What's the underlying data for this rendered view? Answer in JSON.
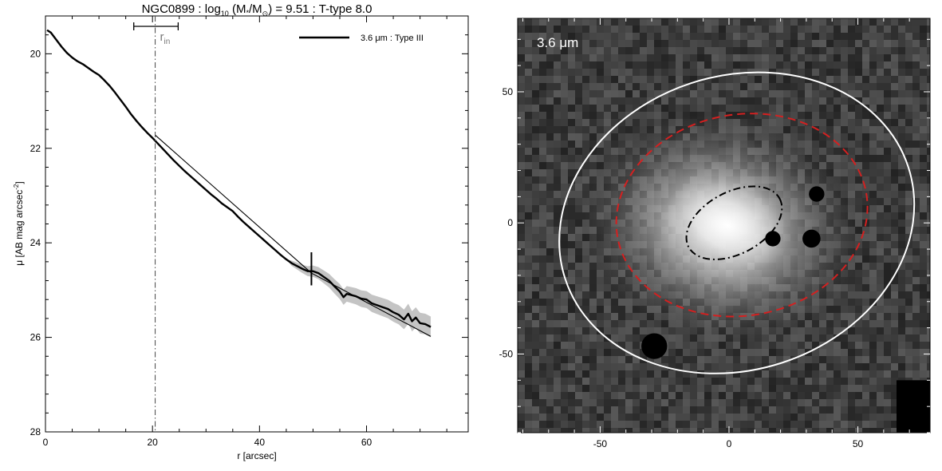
{
  "chart_data": [
    {
      "type": "line",
      "title": {
        "galaxy": "NGC0899 : log",
        "sub10": "10",
        "mass_open": " (M",
        "star": "*",
        "slash": "/M",
        "sun": "⊙",
        "rest": ") = 9.51 : T-type 8.0"
      },
      "xlabel": "r [arcsec]",
      "ylabel": {
        "prefix": "μ [AB mag arcsec",
        "sup": "-2",
        "suffix": "]"
      },
      "xlim": [
        0,
        79
      ],
      "ylim": [
        28,
        19.2
      ],
      "y_inverted": true,
      "xticks": [
        0,
        20,
        40,
        60
      ],
      "yticks": [
        20,
        22,
        24,
        26,
        28
      ],
      "grid": false,
      "legend": {
        "position": "top-right",
        "label": "3.6 μm : Type III"
      },
      "annotations": {
        "r_in": {
          "x": 20.5,
          "label": "r",
          "sub": "in",
          "err_low": 16.5,
          "err_high": 24.8
        },
        "break_marker": {
          "x": 49.7,
          "y_low": 24.2,
          "y_high": 24.9
        }
      },
      "series": [
        {
          "name": "3.6 μm : Type III",
          "role": "profile",
          "color": "#000000",
          "x": [
            0.3,
            1.0,
            2.0,
            3.0,
            4.0,
            5.0,
            6.0,
            7.0,
            8.0,
            9.0,
            10.0,
            11.0,
            12.0,
            13.0,
            14.0,
            15.0,
            16.0,
            17.0,
            18.0,
            19.0,
            20.0,
            21.0,
            22.0,
            23.0,
            24.0,
            25.0,
            26.0,
            27.0,
            28.0,
            29.0,
            30.0,
            31.0,
            32.0,
            33.0,
            34.0,
            35.0,
            36.0,
            37.0,
            38.0,
            39.0,
            40.0,
            41.0,
            42.0,
            43.0,
            44.0,
            45.0,
            46.0,
            47.0,
            48.0,
            49.0,
            50.0,
            51.0,
            52.0,
            53.0,
            54.0,
            55.0,
            55.7,
            56.3,
            57.0,
            58.0,
            59.0,
            60.0,
            61.0,
            62.0,
            63.0,
            64.0,
            65.0,
            66.0,
            67.0,
            67.8,
            68.5,
            69.2,
            70.0,
            71.0,
            72.0
          ],
          "y": [
            19.5,
            19.55,
            19.7,
            19.85,
            19.98,
            20.08,
            20.16,
            20.22,
            20.3,
            20.38,
            20.45,
            20.56,
            20.68,
            20.82,
            20.97,
            21.12,
            21.28,
            21.42,
            21.55,
            21.67,
            21.78,
            21.9,
            22.02,
            22.14,
            22.26,
            22.37,
            22.48,
            22.58,
            22.68,
            22.78,
            22.88,
            22.98,
            23.07,
            23.17,
            23.25,
            23.33,
            23.45,
            23.56,
            23.66,
            23.76,
            23.86,
            23.96,
            24.06,
            24.16,
            24.26,
            24.35,
            24.43,
            24.49,
            24.55,
            24.6,
            24.6,
            24.64,
            24.72,
            24.8,
            24.92,
            25.03,
            25.15,
            25.08,
            25.1,
            25.13,
            25.18,
            25.2,
            25.28,
            25.32,
            25.36,
            25.4,
            25.47,
            25.52,
            25.62,
            25.5,
            25.66,
            25.58,
            25.7,
            25.72,
            25.78
          ]
        },
        {
          "name": "",
          "role": "fit",
          "color": "#000000",
          "x": [
            20.5,
            49.7,
            72.0
          ],
          "y": [
            21.72,
            24.64,
            25.98
          ]
        }
      ],
      "uncertainty_band": {
        "x": [
          45,
          50,
          55,
          60,
          65,
          70,
          72
        ],
        "half_width": [
          0.04,
          0.12,
          0.16,
          0.18,
          0.2,
          0.22,
          0.22
        ]
      }
    },
    {
      "type": "image",
      "label": "3.6 μm",
      "xlim": [
        -82,
        78
      ],
      "ylim": [
        -80,
        78
      ],
      "xticks": [
        -50,
        0,
        50
      ],
      "yticks": [
        -50,
        0,
        50
      ],
      "xticklabels": [
        "-50",
        "0",
        "50"
      ],
      "yticklabels": [
        "-50",
        "0",
        "50"
      ],
      "ellipses": [
        {
          "name": "outer",
          "style": "solid",
          "color": "#ffffff",
          "cx": 3,
          "cy": 0,
          "a": 70,
          "b": 57,
          "angle_deg": 18
        },
        {
          "name": "middle",
          "style": "dashed",
          "color": "#d42020",
          "cx": 5,
          "cy": 3,
          "a": 49,
          "b": 39,
          "angle_deg": 10
        },
        {
          "name": "inner",
          "style": "dashdot",
          "color": "#000000",
          "cx": 2,
          "cy": 0,
          "a": 20,
          "b": 12,
          "angle_deg": 28
        }
      ],
      "masked_sources": [
        {
          "x": 17,
          "y": -6,
          "r": 3
        },
        {
          "x": 34,
          "y": 11,
          "r": 3
        },
        {
          "x": 32,
          "y": -6,
          "r": 3.5
        },
        {
          "x": -29,
          "y": -47,
          "r": 5
        }
      ],
      "masked_corner": {
        "x0": 65,
        "y0": -60,
        "x1": 78,
        "y1": -80
      }
    }
  ]
}
